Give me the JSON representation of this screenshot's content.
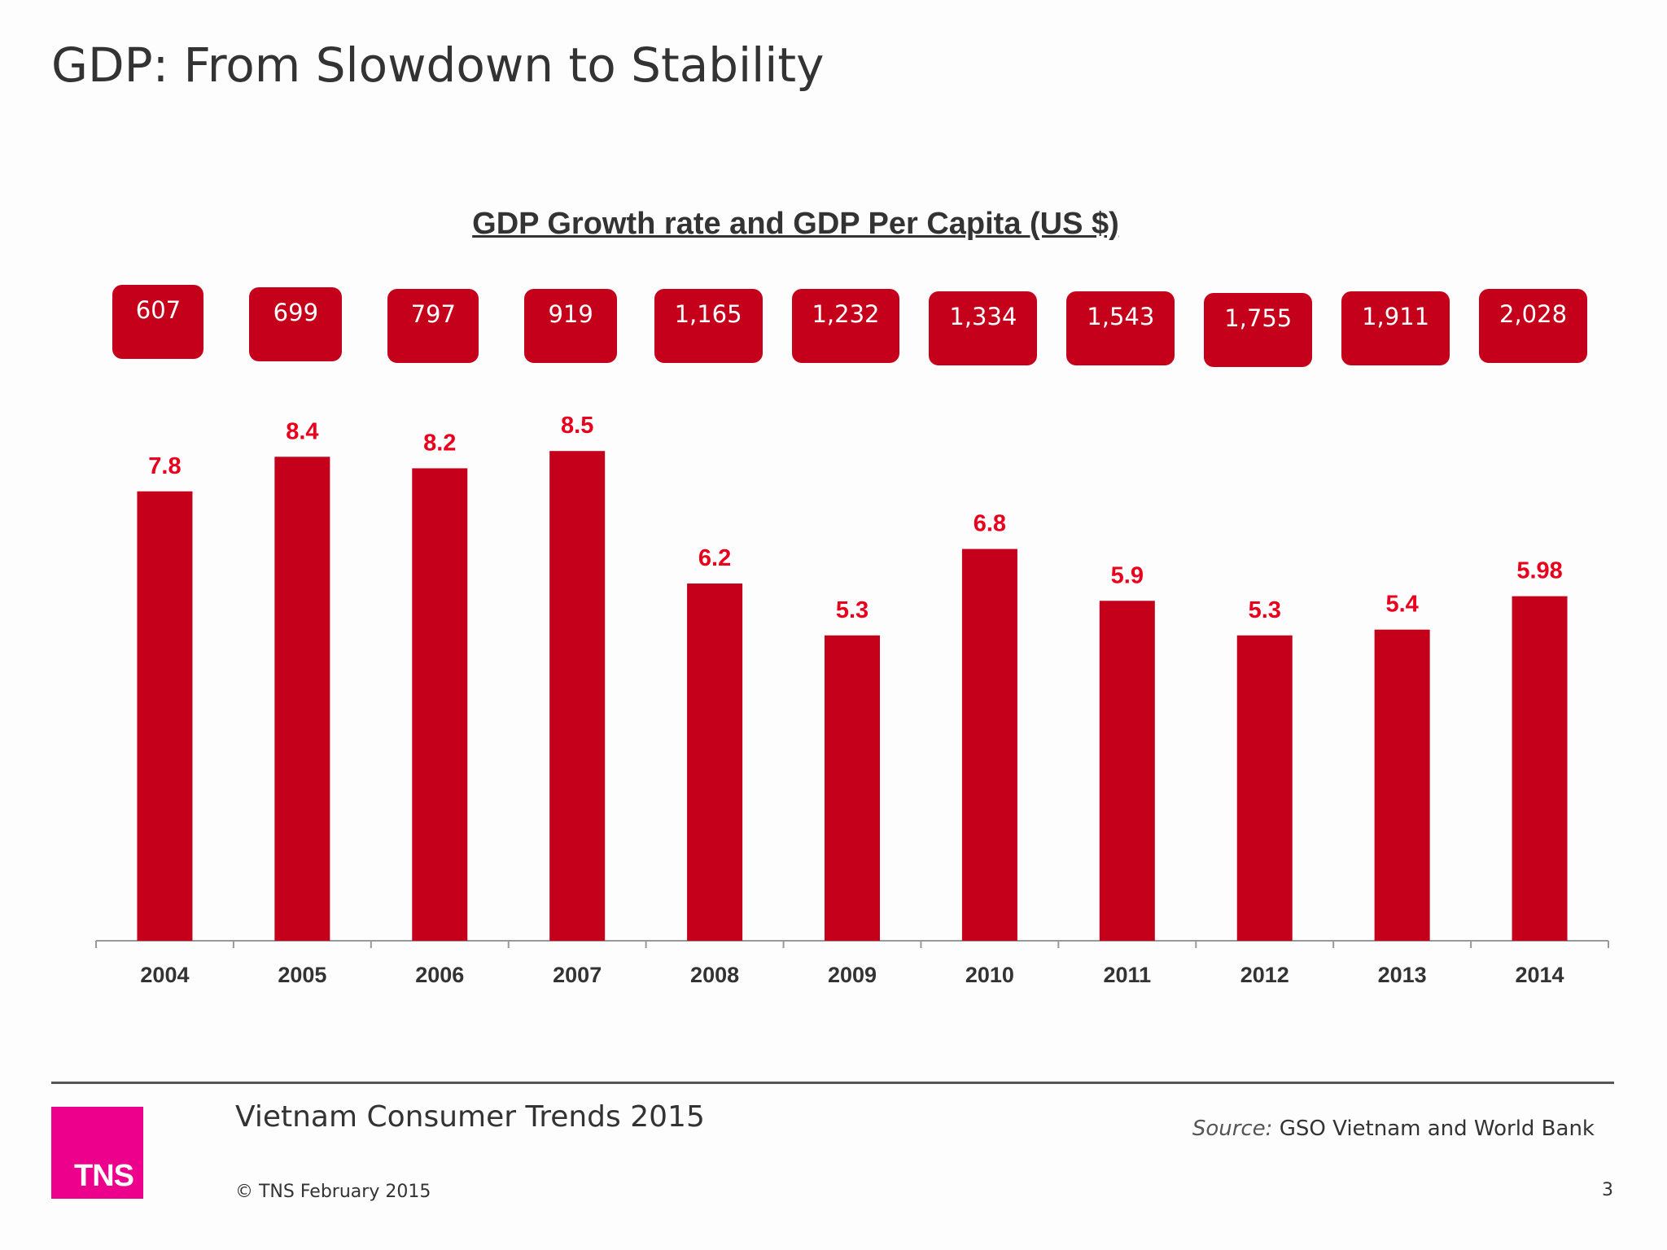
{
  "page": {
    "title": "GDP: From Slowdown to Stability",
    "page_number": "3"
  },
  "footer": {
    "report": "Vietnam Consumer Trends 2015",
    "source_label": "Source:",
    "source_text": "GSO Vietnam and World Bank",
    "copyright": "© TNS February 2015",
    "logo_text": "TNS"
  },
  "colors": {
    "bar": "#c4001a",
    "label": "#e8001c",
    "logo": "#ec008c"
  },
  "chart_data": {
    "type": "bar",
    "title": "GDP Growth rate and GDP Per Capita (US $)",
    "categories": [
      "2004",
      "2005",
      "2006",
      "2007",
      "2008",
      "2009",
      "2010",
      "2011",
      "2012",
      "2013",
      "2014"
    ],
    "series": [
      {
        "values": [
          7.8,
          8.4,
          8.2,
          8.5,
          6.2,
          5.3,
          6.8,
          5.9,
          5.3,
          5.4,
          5.98
        ],
        "labels": [
          "7.8",
          "8.4",
          "8.2",
          "8.5",
          "6.2",
          "5.3",
          "6.8",
          "5.9",
          "5.3",
          "5.4",
          "5.98"
        ]
      }
    ],
    "per_capita": [
      "607",
      "699",
      "797",
      "919",
      "1,165",
      "1,232",
      "1,334",
      "1,543",
      "1,755",
      "1,911",
      "2,028"
    ],
    "ylim": [
      0,
      8.5
    ],
    "grid": false,
    "legend": "none"
  }
}
